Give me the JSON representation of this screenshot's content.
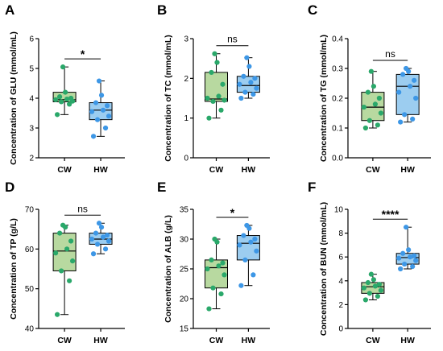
{
  "chart_data": [
    {
      "type": "box",
      "panel": "A",
      "ylabel": "Concentration of GLU (mmol/mL)",
      "ylim": [
        2,
        6
      ],
      "yticks": [
        2,
        3,
        4,
        5,
        6
      ],
      "categories": [
        "CW",
        "HW"
      ],
      "significance": "*",
      "groups": [
        {
          "name": "CW",
          "color": "#b8d9a0",
          "point_color": "#2aa86a",
          "whisker_low": 3.45,
          "q1": 3.88,
          "median": 3.95,
          "q3": 4.2,
          "whisker_high": 5.05,
          "points": [
            3.45,
            3.8,
            3.88,
            3.9,
            3.95,
            3.97,
            4.0,
            4.05,
            4.2,
            5.05
          ]
        },
        {
          "name": "HW",
          "color": "#9ccdf0",
          "point_color": "#3d97e6",
          "whisker_low": 2.72,
          "q1": 3.28,
          "median": 3.6,
          "q3": 3.85,
          "whisker_high": 4.58,
          "points": [
            2.72,
            3.0,
            3.28,
            3.4,
            3.55,
            3.6,
            3.75,
            3.85,
            4.1,
            4.58
          ]
        }
      ]
    },
    {
      "type": "box",
      "panel": "B",
      "ylabel": "Concentration of TC (mmol/mL)",
      "ylim": [
        0,
        3
      ],
      "yticks": [
        0,
        1,
        2,
        3
      ],
      "categories": [
        "CW",
        "HW"
      ],
      "significance": "ns",
      "groups": [
        {
          "name": "CW",
          "color": "#b8d9a0",
          "point_color": "#2aa86a",
          "whisker_low": 1.0,
          "q1": 1.42,
          "median": 1.48,
          "q3": 2.15,
          "whisker_high": 2.62,
          "points": [
            1.0,
            1.2,
            1.42,
            1.45,
            1.5,
            1.55,
            1.85,
            2.15,
            2.4,
            2.62
          ]
        },
        {
          "name": "HW",
          "color": "#9ccdf0",
          "point_color": "#3d97e6",
          "whisker_low": 1.5,
          "q1": 1.65,
          "median": 1.82,
          "q3": 2.05,
          "whisker_high": 2.52,
          "points": [
            1.5,
            1.6,
            1.65,
            1.75,
            1.85,
            1.9,
            2.0,
            2.05,
            2.3,
            2.52
          ]
        }
      ]
    },
    {
      "type": "box",
      "panel": "C",
      "ylabel": "Concentration of TG (mmol/mL)",
      "ylim": [
        0,
        0.4
      ],
      "yticks": [
        0.0,
        0.1,
        0.2,
        0.3,
        0.4
      ],
      "categories": [
        "CW",
        "HW"
      ],
      "significance": "ns",
      "groups": [
        {
          "name": "CW",
          "color": "#b8d9a0",
          "point_color": "#2aa86a",
          "whisker_low": 0.1,
          "q1": 0.125,
          "median": 0.17,
          "q3": 0.22,
          "whisker_high": 0.29,
          "points": [
            0.1,
            0.11,
            0.125,
            0.15,
            0.17,
            0.18,
            0.2,
            0.22,
            0.24,
            0.29
          ]
        },
        {
          "name": "HW",
          "color": "#9ccdf0",
          "point_color": "#3d97e6",
          "whisker_low": 0.12,
          "q1": 0.145,
          "median": 0.24,
          "q3": 0.28,
          "whisker_high": 0.3,
          "points": [
            0.12,
            0.13,
            0.145,
            0.2,
            0.22,
            0.24,
            0.26,
            0.28,
            0.29,
            0.3
          ]
        }
      ]
    },
    {
      "type": "box",
      "panel": "D",
      "ylabel": "Concentration of TP (g/L)",
      "ylim": [
        40,
        70
      ],
      "yticks": [
        40,
        50,
        60,
        70
      ],
      "categories": [
        "CW",
        "HW"
      ],
      "significance": "ns",
      "groups": [
        {
          "name": "CW",
          "color": "#b8d9a0",
          "point_color": "#2aa86a",
          "whisker_low": 43.5,
          "q1": 54.5,
          "median": 59.5,
          "q3": 64,
          "whisker_high": 66,
          "points": [
            43.5,
            52,
            54.5,
            57,
            59,
            60,
            62,
            64,
            65.5,
            66
          ]
        },
        {
          "name": "HW",
          "color": "#9ccdf0",
          "point_color": "#3d97e6",
          "whisker_low": 58.8,
          "q1": 61.2,
          "median": 62.5,
          "q3": 64,
          "whisker_high": 66.5,
          "points": [
            58.8,
            60,
            61.2,
            62,
            62.5,
            63,
            63.5,
            64,
            65.5,
            66.5
          ]
        }
      ]
    },
    {
      "type": "box",
      "panel": "E",
      "ylabel": "Concentration of ALB (g/L)",
      "ylim": [
        15,
        35
      ],
      "yticks": [
        15,
        20,
        25,
        30,
        35
      ],
      "categories": [
        "CW",
        "HW"
      ],
      "significance": "*",
      "groups": [
        {
          "name": "CW",
          "color": "#b8d9a0",
          "point_color": "#2aa86a",
          "whisker_low": 18.3,
          "q1": 21.8,
          "median": 25.2,
          "q3": 26.5,
          "whisker_high": 30,
          "points": [
            18.3,
            20.8,
            21.8,
            24,
            25,
            25.5,
            26,
            26.5,
            29.5,
            30
          ]
        },
        {
          "name": "HW",
          "color": "#9ccdf0",
          "point_color": "#3d97e6",
          "whisker_low": 22.2,
          "q1": 26.5,
          "median": 29.3,
          "q3": 30.6,
          "whisker_high": 32.3,
          "points": [
            22.2,
            24,
            26.5,
            28,
            29,
            29.5,
            30,
            30.6,
            31.8,
            32.3
          ]
        }
      ]
    },
    {
      "type": "box",
      "panel": "F",
      "ylabel": "Concentration of BUN (mmol/mL)",
      "ylim": [
        0,
        10
      ],
      "yticks": [
        0,
        2,
        4,
        6,
        8,
        10
      ],
      "categories": [
        "CW",
        "HW"
      ],
      "significance": "****",
      "groups": [
        {
          "name": "CW",
          "color": "#b8d9a0",
          "point_color": "#2aa86a",
          "whisker_low": 2.4,
          "q1": 2.95,
          "median": 3.5,
          "q3": 3.85,
          "whisker_high": 4.55,
          "points": [
            2.4,
            2.7,
            2.95,
            3.2,
            3.4,
            3.55,
            3.7,
            3.85,
            4.1,
            4.55
          ]
        },
        {
          "name": "HW",
          "color": "#9ccdf0",
          "point_color": "#3d97e6",
          "whisker_low": 5.0,
          "q1": 5.4,
          "median": 5.95,
          "q3": 6.3,
          "whisker_high": 8.5,
          "points": [
            5.0,
            5.2,
            5.4,
            5.7,
            5.9,
            6.0,
            6.1,
            6.3,
            6.6,
            8.5
          ]
        }
      ]
    }
  ]
}
